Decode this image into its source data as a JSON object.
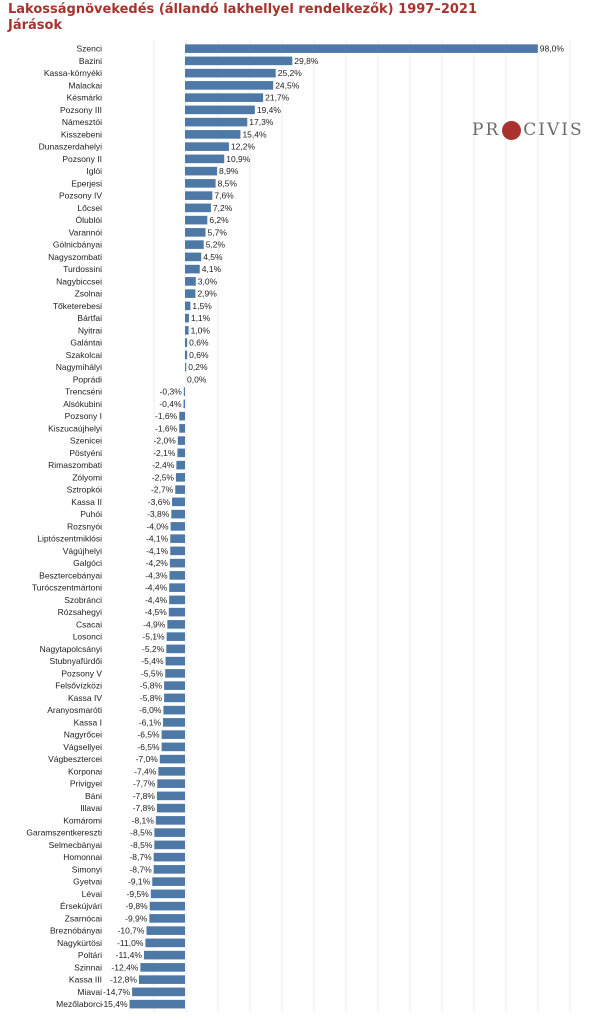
{
  "title": {
    "line1": "Lakosságnövekedés (állandó lakhellyel rendelkezők) 1997–2021",
    "line2": "Járások"
  },
  "logo": {
    "left": "PR",
    "right": "CIVIS",
    "accent_color": "#a8322d"
  },
  "colors": {
    "bar": "#4e79a7",
    "title": "#a8322d",
    "grid": "#ececec"
  },
  "chart_data": {
    "type": "bar",
    "orientation": "horizontal",
    "grid": true,
    "value_suffix": "%",
    "xlim": [
      -20,
      100
    ],
    "categories": [
      "Szenci",
      "Bazini",
      "Kassa-környéki",
      "Malackai",
      "Késmárki",
      "Pozsony III",
      "Námesztói",
      "Kisszebeni",
      "Dunaszerdahelyi",
      "Pozsony II",
      "Iglói",
      "Eperjesi",
      "Pozsony IV",
      "Lőcsei",
      "Ólublói",
      "Varannói",
      "Gölnicbányai",
      "Nagyszombati",
      "Turdossini",
      "Nagybiccsei",
      "Zsolnai",
      "Tőketerebesi",
      "Bártfai",
      "Nyitrai",
      "Galántai",
      "Szakolcai",
      "Nagymihályi",
      "Poprádi",
      "Trencséni",
      "Alsókubini",
      "Pozsony I",
      "Kiszucaújhelyi",
      "Szenicei",
      "Pöstyéni",
      "Rimaszombati",
      "Zólyomi",
      "Sztropkói",
      "Kassa II",
      "Puhói",
      "Rozsnyói",
      "Liptószentmiklósi",
      "Vágújhelyi",
      "Galgóci",
      "Besztercebányai",
      "Turócszentmártoni",
      "Szobránci",
      "Rózsahegyi",
      "Csacai",
      "Losonci",
      "Nagytapolcsányi",
      "Stubnyafürdői",
      "Pozsony V",
      "Felsővízközi",
      "Kassa IV",
      "Aranyosmaróti",
      "Kassa I",
      "Nagyrőcei",
      "Vágsellyei",
      "Vágbesztercei",
      "Korponai",
      "Privigyei",
      "Báni",
      "Illavai",
      "Komáromi",
      "Garamszentkereszti",
      "Selmecbányai",
      "Homonnai",
      "Simonyi",
      "Gyetvai",
      "Lévai",
      "Érsekújvári",
      "Zsarnócai",
      "Breznóbányai",
      "Nagykürtösi",
      "Poltári",
      "Szinnai",
      "Kassa III",
      "Miavai",
      "Mezőlaborci"
    ],
    "values": [
      98.0,
      29.8,
      25.2,
      24.5,
      21.7,
      19.4,
      17.3,
      15.4,
      12.2,
      10.9,
      8.9,
      8.5,
      7.6,
      7.2,
      6.2,
      5.7,
      5.2,
      4.5,
      4.1,
      3.0,
      2.9,
      1.5,
      1.1,
      1.0,
      0.6,
      0.6,
      0.2,
      0.0,
      -0.3,
      -0.4,
      -1.6,
      -1.6,
      -2.0,
      -2.1,
      -2.4,
      -2.5,
      -2.7,
      -3.6,
      -3.8,
      -4.0,
      -4.1,
      -4.1,
      -4.2,
      -4.3,
      -4.4,
      -4.4,
      -4.5,
      -4.9,
      -5.1,
      -5.2,
      -5.4,
      -5.5,
      -5.8,
      -5.8,
      -6.0,
      -6.1,
      -6.5,
      -6.5,
      -7.0,
      -7.4,
      -7.7,
      -7.8,
      -7.8,
      -8.1,
      -8.5,
      -8.5,
      -8.7,
      -8.7,
      -9.1,
      -9.5,
      -9.8,
      -9.9,
      -10.7,
      -11.0,
      -11.4,
      -12.4,
      -12.8,
      -14.7,
      -15.4
    ],
    "value_labels": [
      "98,0%",
      "29,8%",
      "25,2%",
      "24,5%",
      "21,7%",
      "19,4%",
      "17,3%",
      "15,4%",
      "12,2%",
      "10,9%",
      "8,9%",
      "8,5%",
      "7,6%",
      "7,2%",
      "6,2%",
      "5,7%",
      "5,2%",
      "4,5%",
      "4,1%",
      "3,0%",
      "2,9%",
      "1,5%",
      "1,1%",
      "1,0%",
      "0,6%",
      "0,6%",
      "0,2%",
      "0,0%",
      "-0,3%",
      "-0,4%",
      "-1,6%",
      "-1,6%",
      "-2,0%",
      "-2,1%",
      "-2,4%",
      "-2,5%",
      "-2,7%",
      "-3,6%",
      "-3,8%",
      "-4,0%",
      "-4,1%",
      "-4,1%",
      "-4,2%",
      "-4,3%",
      "-4,4%",
      "-4,4%",
      "-4,5%",
      "-4,9%",
      "-5,1%",
      "-5,2%",
      "-5,4%",
      "-5,5%",
      "-5,8%",
      "-5,8%",
      "-6,0%",
      "-6,1%",
      "-6,5%",
      "-6,5%",
      "-7,0%",
      "-7,4%",
      "-7,7%",
      "-7,8%",
      "-7,8%",
      "-8,1%",
      "-8,5%",
      "-8,5%",
      "-8,7%",
      "-8,7%",
      "-9,1%",
      "-9,5%",
      "-9,8%",
      "-9,9%",
      "-10,7%",
      "-11,0%",
      "-11,4%",
      "-12,4%",
      "-12,8%",
      "-14,7%",
      "-15,4%"
    ]
  }
}
